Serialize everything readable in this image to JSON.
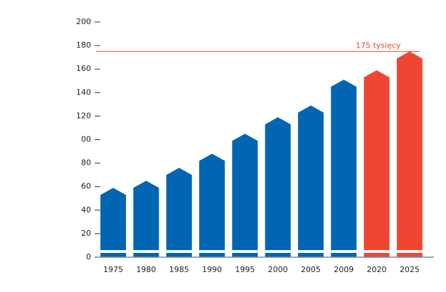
{
  "chart_data": {
    "type": "bar",
    "categories": [
      "1975",
      "1980",
      "1985",
      "1990",
      "1995",
      "2000",
      "2005",
      "2009",
      "2020",
      "2025"
    ],
    "values": [
      59,
      65,
      76,
      88,
      105,
      119,
      129,
      151,
      159,
      175
    ],
    "colors": [
      "#0066b3",
      "#0066b3",
      "#0066b3",
      "#0066b3",
      "#0066b3",
      "#0066b3",
      "#0066b3",
      "#0066b3",
      "#ef4634",
      "#ef4634"
    ],
    "ylim": [
      0,
      200
    ],
    "yticks": [
      0,
      20,
      40,
      60,
      80,
      {
        "value": 100,
        "label": "00"
      },
      120,
      140,
      160,
      180,
      200
    ],
    "reference_line": {
      "value": 175,
      "label": "175 tysięcy",
      "color": "#ef4634"
    }
  }
}
